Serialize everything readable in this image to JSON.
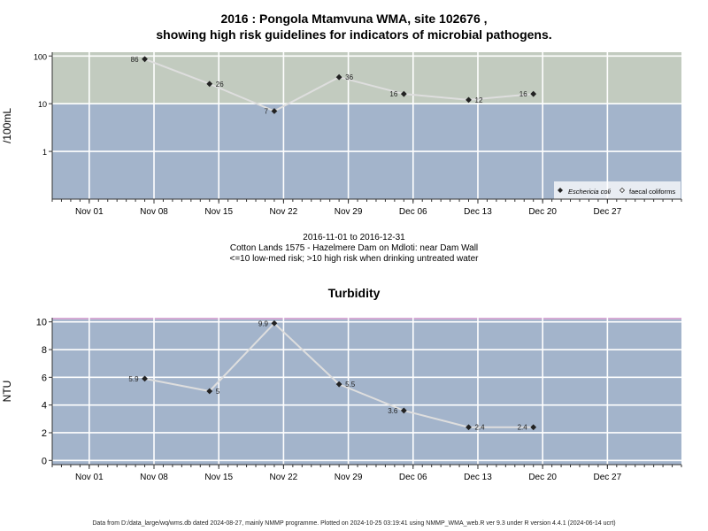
{
  "title_line1": "2016 : Pongola Mtamvuna WMA, site 102676 ,",
  "title_line2": "showing high risk guidelines for indicators of microbial pathogens.",
  "subtitle": {
    "date_range": "2016-11-01 to 2016-12-31",
    "site": "Cotton Lands 1575 - Hazelmere Dam on Mdloti: near Dam Wall",
    "risk_note": "<=10 low-med risk; >10 high risk when drinking untreated water"
  },
  "footer": "Data from D:/data_large/wq/wms.db dated 2024-08-27, mainly NMMP programme. Plotted on 2024-10-25 03:19:41 using NMMP_WMA_web.R ver 9.3 under R version 4.4.1 (2024-06-14 ucrt)",
  "colors": {
    "panel": "#a3b4cb",
    "high_risk_band": "#c2cbbf",
    "line": "#dedede",
    "marker": "#222222",
    "grid": "#ffffff",
    "turb_top_line": "#e6a6d8"
  },
  "chart_data": [
    {
      "type": "line",
      "ylabel": "/100mL",
      "yscale": "log",
      "ylim": [
        0.1,
        120
      ],
      "yticks": [
        1,
        10,
        100
      ],
      "ytick_labels": [
        "1",
        "10",
        "100"
      ],
      "xlim": [
        "2016-10-28",
        "2017-01-04"
      ],
      "xticks": [
        "2016-11-01",
        "2016-11-08",
        "2016-11-15",
        "2016-11-22",
        "2016-11-29",
        "2016-12-06",
        "2016-12-13",
        "2016-12-20",
        "2016-12-27"
      ],
      "xtick_labels": [
        "Nov 01",
        "Nov 08",
        "Nov 15",
        "Nov 22",
        "Nov 29",
        "Dec 06",
        "Dec 13",
        "Dec 20",
        "Dec 27"
      ],
      "high_risk_threshold": 10,
      "grid": true,
      "legend_position": "bottom-right",
      "legend": [
        {
          "label": "Eschericia coli",
          "marker": "filled-diamond"
        },
        {
          "label": "faecal coliforms",
          "marker": "open-diamond"
        }
      ],
      "series": [
        {
          "name": "Eschericia coli",
          "x": [
            "2016-11-07",
            "2016-11-14",
            "2016-11-21",
            "2016-11-28",
            "2016-12-05",
            "2016-12-12",
            "2016-12-19"
          ],
          "values": [
            86,
            26,
            7,
            36,
            16,
            12,
            16
          ],
          "labels": [
            "86",
            "26",
            "7",
            "36",
            "16",
            "12",
            "16"
          ]
        }
      ]
    },
    {
      "type": "line",
      "title": "Turbidity",
      "ylabel": "NTU",
      "ylim": [
        -0.3,
        10.3
      ],
      "yticks": [
        0,
        2,
        4,
        6,
        8,
        10
      ],
      "ytick_labels": [
        "0",
        "2",
        "4",
        "6",
        "8",
        "10"
      ],
      "xlim": [
        "2016-10-28",
        "2017-01-04"
      ],
      "xticks": [
        "2016-11-01",
        "2016-11-08",
        "2016-11-15",
        "2016-11-22",
        "2016-11-29",
        "2016-12-06",
        "2016-12-13",
        "2016-12-20",
        "2016-12-27"
      ],
      "xtick_labels": [
        "Nov 01",
        "Nov 08",
        "Nov 15",
        "Nov 22",
        "Nov 29",
        "Dec 06",
        "Dec 13",
        "Dec 20",
        "Dec 27"
      ],
      "grid": true,
      "series": [
        {
          "x": [
            "2016-11-07",
            "2016-11-14",
            "2016-11-21",
            "2016-11-28",
            "2016-12-05",
            "2016-12-12",
            "2016-12-19"
          ],
          "values": [
            5.9,
            5,
            9.9,
            5.5,
            3.6,
            2.4,
            2.4
          ],
          "labels": [
            "5.9",
            "5",
            "9.9",
            "5.5",
            "3.6",
            "2.4",
            "2.4"
          ]
        }
      ]
    }
  ]
}
